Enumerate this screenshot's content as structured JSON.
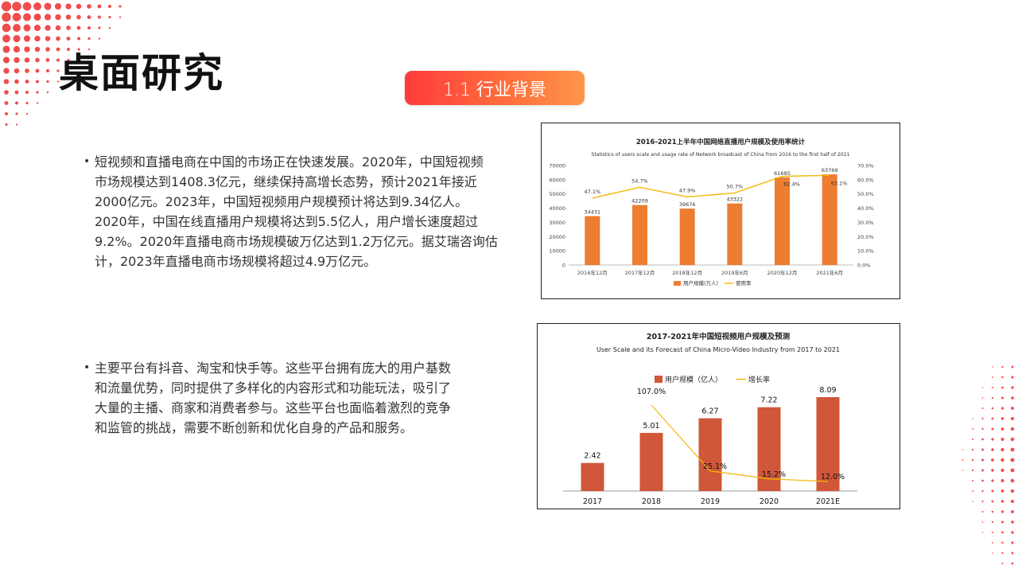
{
  "header": {
    "title": "桌面研究",
    "section_label": "1.1 行业背景"
  },
  "content": {
    "bullet1": [
      "短视频和直播电商在中国的市场正在快速发展。2020年，中国短视频",
      "市场规模达到1408.3亿元，继续保持高增长态势，预计2021年接近",
      "2000亿元。2023年，中国短视频用户规模预计将达到9.34亿人。",
      "2020年，中国在线直播用户规模将达到5.5亿人，用户增长速度超过",
      "9.2%。2020年直播电商市场规模破万亿达到1.2万亿元。据艾瑞咨询估",
      "计，2023年直播电商市场规模将超过4.9万亿元。"
    ],
    "bullet2": [
      "主要平台有抖音、淘宝和快手等。这些平台拥有庞大的用户基数",
      "和流量优势，同时提供了多样化的内容形式和功能玩法，吸引了",
      "大量的主播、商家和消费者参与。这些平台也面临着激烈的竞争",
      "和监管的挑战，需要不断创新和优化自身的产品和服务。"
    ]
  },
  "colors": {
    "accent_red": "#ff3b3b",
    "accent_orange": "#ff9448",
    "bar_orange": "#ed7d31",
    "bar_red": "#d0573a",
    "line_yellow": "#f2b705",
    "dot_red": "#ee3a3a"
  },
  "chart_data": [
    {
      "type": "bar",
      "title": "2016-2021上半年中国网络直播用户规模及使用率统计",
      "subtitle": "Statistics of users scale and usage rate of Network broadcast of China from 2016 to the first half of 2021",
      "categories": [
        "2016年12月",
        "2017年12月",
        "2018年12月",
        "2019年6月",
        "2020年12月",
        "2021年6月"
      ],
      "series": [
        {
          "name": "用户规模(万人)",
          "kind": "bar",
          "axis": "left",
          "values": [
            34431,
            42209,
            39676,
            43322,
            61685,
            63769
          ]
        },
        {
          "name": "使用率",
          "kind": "line",
          "axis": "right",
          "values": [
            47.1,
            54.7,
            47.9,
            50.7,
            62.4,
            63.1
          ],
          "labels": [
            "47.1%",
            "54.7%",
            "47.9%",
            "50.7%",
            "62.4%",
            "63.1%"
          ]
        }
      ],
      "y_left_ticks": [
        "0",
        "10000",
        "20000",
        "30000",
        "40000",
        "50000",
        "60000",
        "70000"
      ],
      "y_right_ticks": [
        "0.0%",
        "10.0%",
        "20.0%",
        "30.0%",
        "40.0%",
        "50.0%",
        "60.0%",
        "70.0%"
      ],
      "ylim_left": [
        0,
        70000
      ],
      "ylim_right": [
        0,
        70
      ],
      "legend_position": "bottom"
    },
    {
      "type": "bar",
      "title": "2017-2021年中国短视频用户规模及预测",
      "subtitle": "User Scale and its Forecast of China Micro-Video Industry from 2017 to 2021",
      "categories": [
        "2017",
        "2018",
        "2019",
        "2020",
        "2021E"
      ],
      "series": [
        {
          "name": "用户规模（亿人）",
          "kind": "bar",
          "values": [
            2.42,
            5.01,
            6.27,
            7.22,
            8.09
          ],
          "labels": [
            "2.42",
            "5.01",
            "6.27",
            "7.22",
            "8.09"
          ]
        },
        {
          "name": "增长率",
          "kind": "line",
          "values": [
            null,
            107.0,
            25.1,
            15.2,
            12.0
          ],
          "labels": [
            "",
            "107.0%",
            "25.1%",
            "15.2%",
            "12.0%"
          ]
        }
      ],
      "legend_position": "top"
    }
  ]
}
